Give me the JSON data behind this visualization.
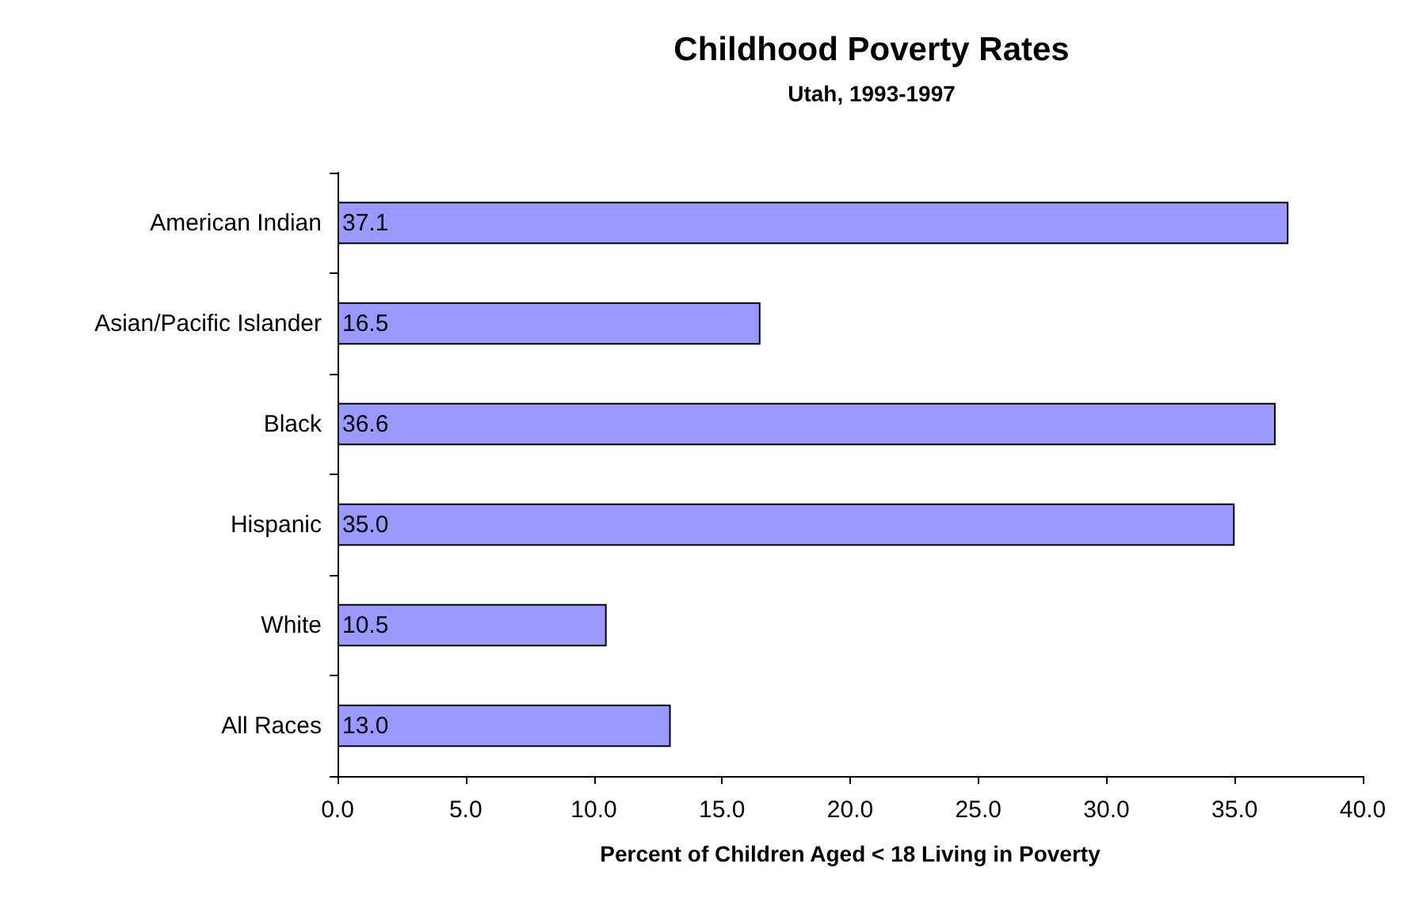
{
  "chart_data": {
    "type": "bar",
    "orientation": "horizontal",
    "title": "Childhood Poverty Rates",
    "subtitle": "Utah, 1993-1997",
    "xlabel": "Percent of Children Aged < 18 Living in Poverty",
    "categories": [
      "American Indian",
      "Asian/Pacific Islander",
      "Black",
      "Hispanic",
      "White",
      "All Races"
    ],
    "values": [
      37.1,
      16.5,
      36.6,
      35.0,
      10.5,
      13.0
    ],
    "value_labels": [
      "37.1",
      "16.5",
      "36.6",
      "35.0",
      "10.5",
      "13.0"
    ],
    "color": "#9999ff",
    "xlim": [
      0,
      40
    ],
    "xticks": [
      {
        "value": 0,
        "label": "0.0"
      },
      {
        "value": 5,
        "label": "5.0"
      },
      {
        "value": 10,
        "label": "10.0"
      },
      {
        "value": 15,
        "label": "15.0"
      },
      {
        "value": 20,
        "label": "20.0"
      },
      {
        "value": 25,
        "label": "25.0"
      },
      {
        "value": 30,
        "label": "30.0"
      },
      {
        "value": 35,
        "label": "35.0"
      },
      {
        "value": 40,
        "label": "40.0"
      }
    ],
    "grid": false
  }
}
